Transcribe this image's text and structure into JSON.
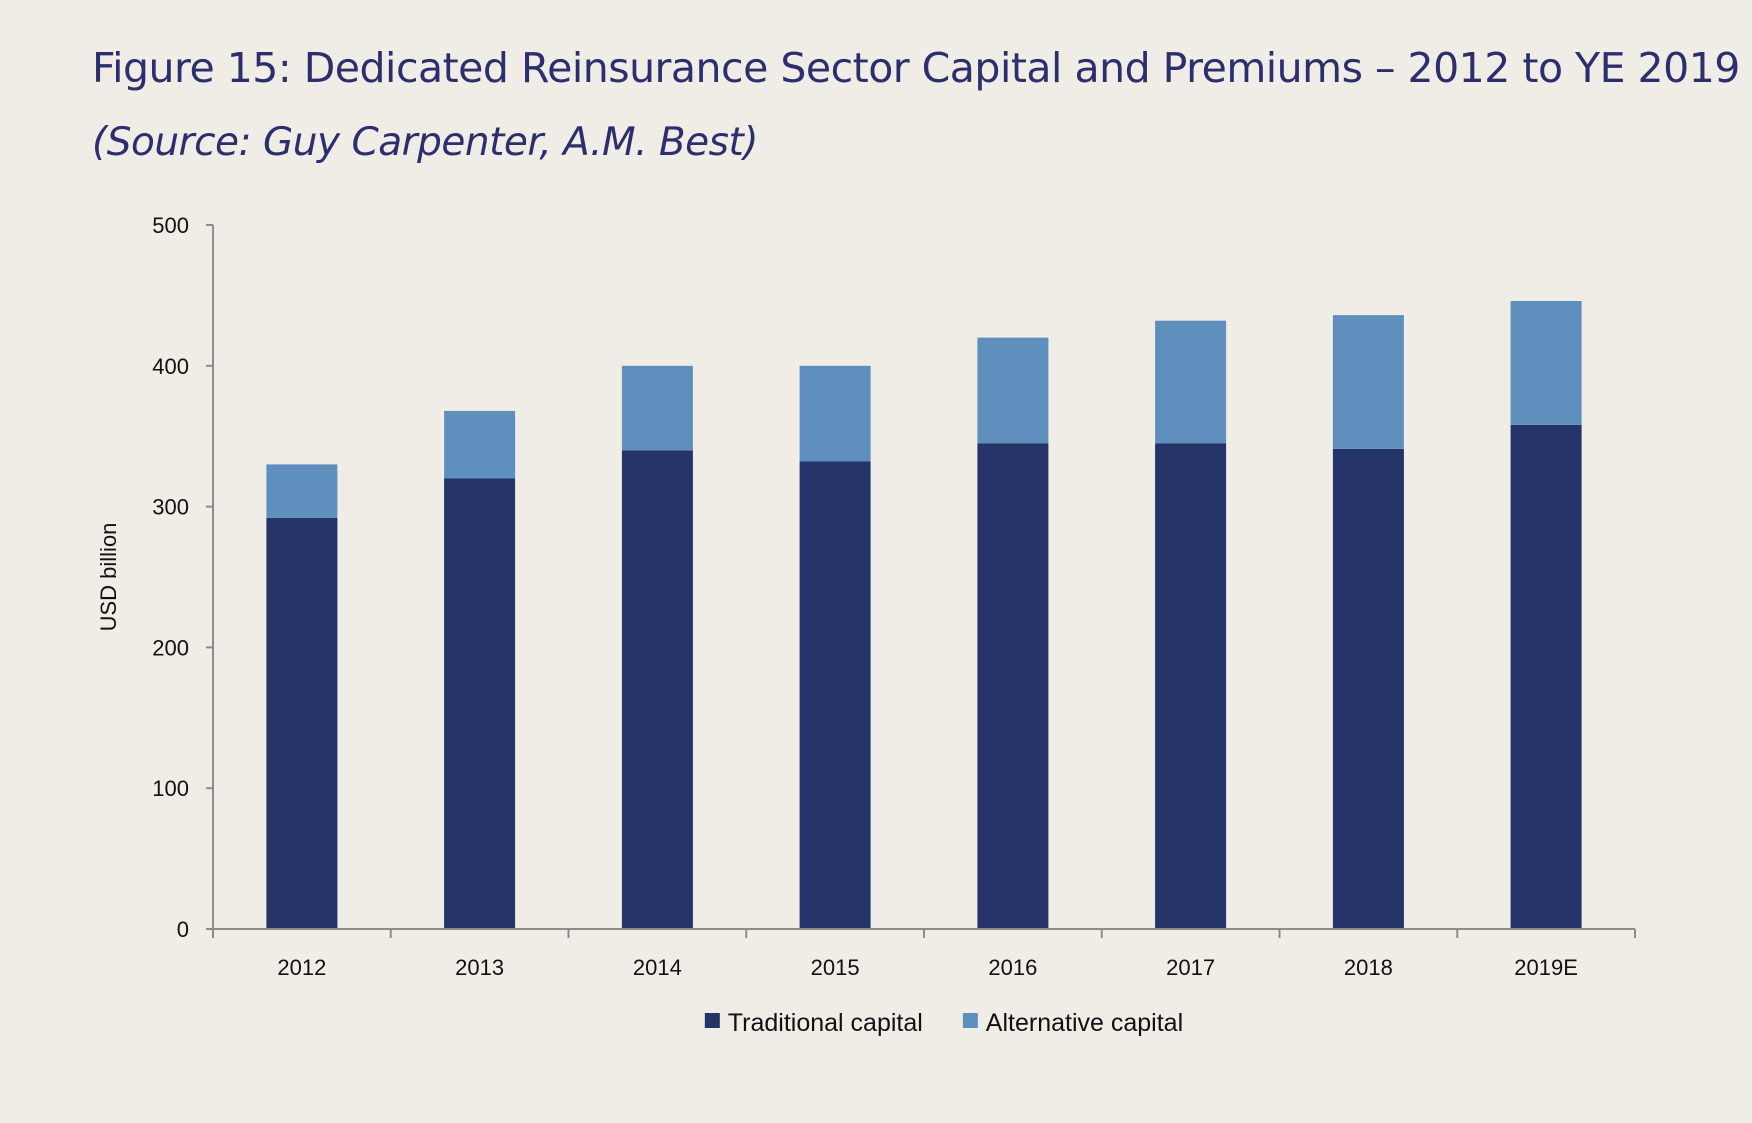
{
  "header": {
    "title": "Figure 15: Dedicated Reinsurance Sector Capital and Premiums – 2012 to YE 2019",
    "source": "(Source: Guy Carpenter, A.M. Best)"
  },
  "chart_data": {
    "type": "bar",
    "stacked": true,
    "title": "",
    "xlabel": "",
    "ylabel": "USD billion",
    "ylim": [
      0,
      500
    ],
    "yticks": [
      0,
      100,
      200,
      300,
      400,
      500
    ],
    "categories": [
      "2012",
      "2013",
      "2014",
      "2015",
      "2016",
      "2017",
      "2018",
      "2019E"
    ],
    "series": [
      {
        "name": "Traditional capital",
        "color": "#243468",
        "values": [
          292,
          320,
          340,
          332,
          345,
          345,
          341,
          358
        ]
      },
      {
        "name": "Alternative capital",
        "color": "#5e8fbd",
        "values": [
          38,
          48,
          60,
          68,
          75,
          87,
          95,
          88
        ]
      }
    ],
    "legend": "bottom-center",
    "grid": false
  }
}
